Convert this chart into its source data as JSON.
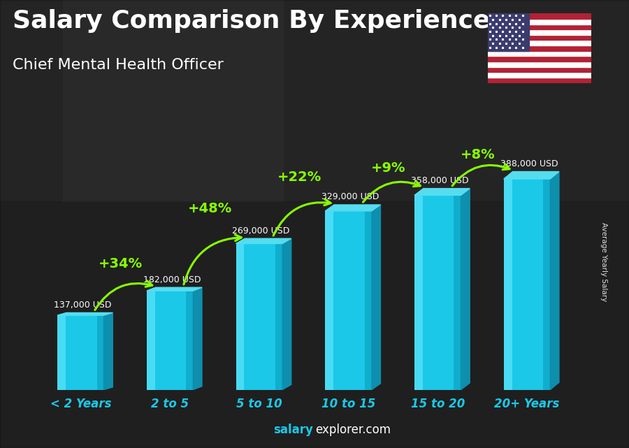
{
  "title": "Salary Comparison By Experience",
  "subtitle": "Chief Mental Health Officer",
  "categories": [
    "< 2 Years",
    "2 to 5",
    "5 to 10",
    "10 to 15",
    "15 to 20",
    "20+ Years"
  ],
  "values": [
    137000,
    182000,
    269000,
    329000,
    358000,
    388000
  ],
  "labels": [
    "137,000 USD",
    "182,000 USD",
    "269,000 USD",
    "329,000 USD",
    "358,000 USD",
    "388,000 USD"
  ],
  "pct_changes": [
    "+34%",
    "+48%",
    "+22%",
    "+9%",
    "+8%"
  ],
  "bar_face": "#1BC8E8",
  "bar_right": "#0E8FAE",
  "bar_top": "#55DDEF",
  "bar_highlight": "#6EEDFF",
  "bg_dark": "#2d2d2d",
  "text_color": "#ffffff",
  "pct_color": "#88ff00",
  "label_color": "#ffffff",
  "cat_color": "#1BC8E8",
  "ylabel": "Average Yearly Salary",
  "footer_bold": "salary",
  "footer_rest": "explorer.com",
  "footer_bold_color": "#1BC8E8",
  "footer_rest_color": "#ffffff",
  "ylim": [
    0,
    470000
  ],
  "title_fontsize": 26,
  "subtitle_fontsize": 16
}
